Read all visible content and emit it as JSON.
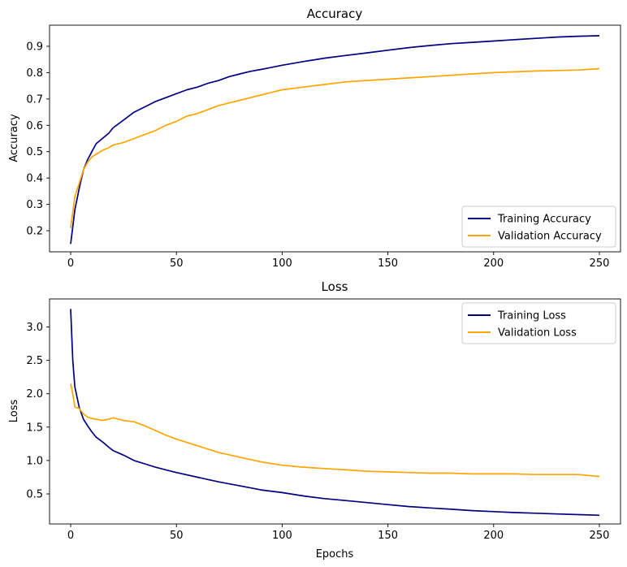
{
  "chart_data": [
    {
      "type": "line",
      "title": "Accuracy",
      "xlabel": "",
      "ylabel": "Accuracy",
      "xlim": [
        -10,
        260
      ],
      "ylim": [
        0.12,
        0.98
      ],
      "xticks": [
        0,
        50,
        100,
        150,
        200,
        250
      ],
      "yticks": [
        0.2,
        0.3,
        0.4,
        0.5,
        0.6,
        0.7,
        0.8,
        0.9
      ],
      "ytick_labels": [
        "0.2",
        "0.3",
        "0.4",
        "0.5",
        "0.6",
        "0.7",
        "0.8",
        "0.9"
      ],
      "legend_position": "lower-right",
      "grid": false,
      "series": [
        {
          "name": "Training Accuracy",
          "color": "#000080",
          "x": [
            0,
            2,
            4,
            6,
            8,
            10,
            12,
            15,
            18,
            20,
            25,
            30,
            35,
            40,
            45,
            50,
            55,
            60,
            65,
            70,
            75,
            80,
            85,
            90,
            95,
            100,
            110,
            120,
            130,
            140,
            150,
            160,
            170,
            180,
            190,
            200,
            210,
            220,
            230,
            240,
            250
          ],
          "y": [
            0.15,
            0.28,
            0.36,
            0.43,
            0.47,
            0.5,
            0.53,
            0.55,
            0.57,
            0.59,
            0.62,
            0.65,
            0.67,
            0.69,
            0.705,
            0.72,
            0.735,
            0.745,
            0.76,
            0.77,
            0.785,
            0.795,
            0.805,
            0.812,
            0.82,
            0.828,
            0.842,
            0.855,
            0.865,
            0.875,
            0.885,
            0.895,
            0.903,
            0.91,
            0.915,
            0.92,
            0.925,
            0.93,
            0.935,
            0.938,
            0.94
          ]
        },
        {
          "name": "Validation Accuracy",
          "color": "#ffa500",
          "x": [
            0,
            2,
            4,
            6,
            8,
            10,
            12,
            15,
            18,
            20,
            25,
            30,
            35,
            40,
            45,
            50,
            55,
            60,
            65,
            70,
            75,
            80,
            85,
            90,
            95,
            100,
            110,
            120,
            130,
            140,
            150,
            160,
            170,
            180,
            190,
            200,
            210,
            220,
            230,
            240,
            250
          ],
          "y": [
            0.21,
            0.33,
            0.38,
            0.43,
            0.46,
            0.48,
            0.49,
            0.505,
            0.515,
            0.525,
            0.535,
            0.55,
            0.565,
            0.58,
            0.6,
            0.615,
            0.635,
            0.645,
            0.66,
            0.675,
            0.685,
            0.695,
            0.705,
            0.715,
            0.725,
            0.735,
            0.745,
            0.755,
            0.765,
            0.77,
            0.775,
            0.78,
            0.785,
            0.79,
            0.795,
            0.8,
            0.803,
            0.806,
            0.808,
            0.81,
            0.815
          ]
        }
      ]
    },
    {
      "type": "line",
      "title": "Loss",
      "xlabel": "Epochs",
      "ylabel": "Loss",
      "xlim": [
        -10,
        260
      ],
      "ylim": [
        0.05,
        3.42
      ],
      "xticks": [
        0,
        50,
        100,
        150,
        200,
        250
      ],
      "yticks": [
        0.5,
        1.0,
        1.5,
        2.0,
        2.5,
        3.0
      ],
      "ytick_labels": [
        "0.5",
        "1.0",
        "1.5",
        "2.0",
        "2.5",
        "3.0"
      ],
      "legend_position": "upper-right",
      "grid": false,
      "series": [
        {
          "name": "Training Loss",
          "color": "#000080",
          "x": [
            0,
            1,
            2,
            4,
            6,
            8,
            10,
            12,
            15,
            18,
            20,
            25,
            30,
            35,
            40,
            45,
            50,
            60,
            70,
            80,
            90,
            100,
            110,
            120,
            130,
            140,
            150,
            160,
            170,
            180,
            190,
            200,
            210,
            220,
            230,
            240,
            250
          ],
          "y": [
            3.27,
            2.5,
            2.1,
            1.8,
            1.62,
            1.52,
            1.43,
            1.35,
            1.28,
            1.2,
            1.15,
            1.08,
            1.0,
            0.95,
            0.9,
            0.86,
            0.82,
            0.75,
            0.68,
            0.62,
            0.56,
            0.52,
            0.47,
            0.43,
            0.4,
            0.37,
            0.34,
            0.31,
            0.29,
            0.27,
            0.25,
            0.235,
            0.22,
            0.21,
            0.2,
            0.19,
            0.18
          ]
        },
        {
          "name": "Validation Loss",
          "color": "#ffa500",
          "x": [
            0,
            1,
            2,
            4,
            6,
            8,
            10,
            12,
            15,
            18,
            20,
            25,
            30,
            35,
            40,
            45,
            50,
            60,
            70,
            80,
            90,
            100,
            110,
            120,
            130,
            140,
            150,
            160,
            170,
            180,
            190,
            200,
            210,
            220,
            230,
            240,
            250
          ],
          "y": [
            2.15,
            2.0,
            1.8,
            1.78,
            1.7,
            1.65,
            1.63,
            1.62,
            1.6,
            1.62,
            1.64,
            1.6,
            1.58,
            1.52,
            1.45,
            1.38,
            1.32,
            1.22,
            1.12,
            1.05,
            0.98,
            0.93,
            0.9,
            0.88,
            0.86,
            0.84,
            0.83,
            0.82,
            0.81,
            0.81,
            0.8,
            0.8,
            0.8,
            0.79,
            0.79,
            0.79,
            0.76
          ]
        }
      ]
    }
  ]
}
